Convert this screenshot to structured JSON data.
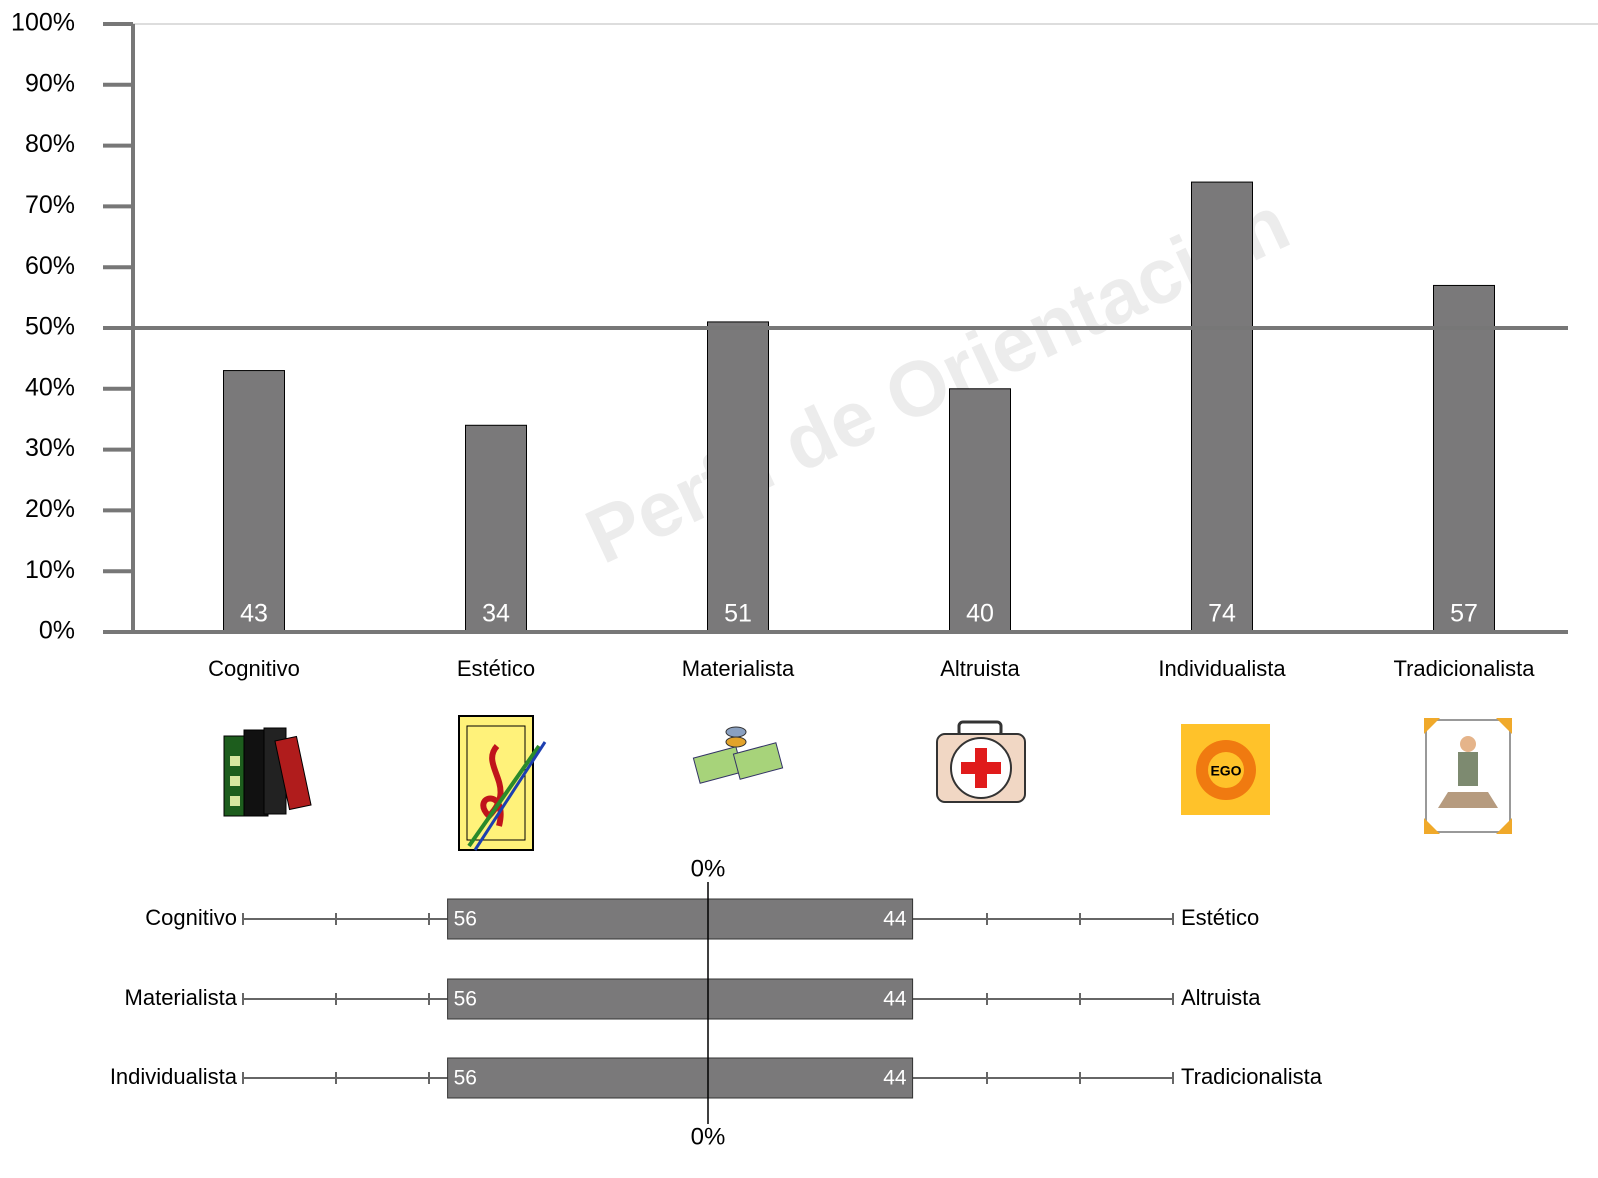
{
  "chart_data": [
    {
      "type": "bar",
      "watermark": "Perfil de Orientación",
      "categories": [
        "Cognitivo",
        "Estético",
        "Materialista",
        "Altruista",
        "Individualista",
        "Tradicionalista"
      ],
      "values": [
        43,
        34,
        51,
        40,
        74,
        57
      ],
      "color": "#7a797a",
      "ylim": [
        0,
        100
      ],
      "yticks": [
        {
          "value": 0,
          "label": "0%"
        },
        {
          "value": 10,
          "label": "10%"
        },
        {
          "value": 20,
          "label": "20%"
        },
        {
          "value": 30,
          "label": "30%"
        },
        {
          "value": 40,
          "label": "40%"
        },
        {
          "value": 50,
          "label": "50%"
        },
        {
          "value": 60,
          "label": "60%"
        },
        {
          "value": 70,
          "label": "70%"
        },
        {
          "value": 80,
          "label": "80%"
        },
        {
          "value": 90,
          "label": "90%"
        },
        {
          "value": 100,
          "label": "100%"
        }
      ],
      "reference_line": 50
    },
    {
      "type": "diverging_bar",
      "left_categories": [
        "Cognitivo",
        "Materialista",
        "Individualista"
      ],
      "right_categories": [
        "Estético",
        "Altruista",
        "Tradicionalista"
      ],
      "left_values": [
        56,
        56,
        56
      ],
      "right_values": [
        44,
        44,
        44
      ],
      "color": "#7a797a",
      "xlim": [
        -100,
        100
      ],
      "xticks": [
        -100,
        -80,
        -60,
        -40,
        -20,
        {
          "value": 0,
          "label": "0%"
        },
        20,
        40,
        60,
        80,
        100
      ]
    }
  ]
}
